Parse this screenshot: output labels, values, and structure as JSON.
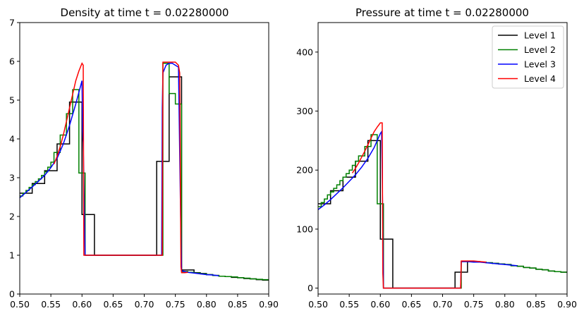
{
  "chart_data": [
    {
      "type": "line",
      "title": "Density at time t =     0.02280000",
      "xlabel": "",
      "ylabel": "",
      "xlim": [
        0.5,
        0.9
      ],
      "ylim": [
        0,
        7
      ],
      "xticks": [
        0.5,
        0.55,
        0.6,
        0.65,
        0.7,
        0.75,
        0.8,
        0.85,
        0.9
      ],
      "xtick_labels": [
        "0.50",
        "0.55",
        "0.60",
        "0.65",
        "0.70",
        "0.75",
        "0.80",
        "0.85",
        "0.90"
      ],
      "yticks": [
        0,
        1,
        2,
        3,
        4,
        5,
        6,
        7
      ],
      "ytick_labels": [
        "0",
        "1",
        "2",
        "3",
        "4",
        "5",
        "6",
        "7"
      ],
      "grid": false,
      "series": [
        {
          "name": "Level 1",
          "color": "#000000",
          "step": true,
          "x": [
            0.5,
            0.51,
            0.52,
            0.53,
            0.54,
            0.55,
            0.56,
            0.57,
            0.58,
            0.59,
            0.6,
            0.61,
            0.62,
            0.63,
            0.64,
            0.65,
            0.66,
            0.67,
            0.68,
            0.69,
            0.7,
            0.71,
            0.72,
            0.73,
            0.74,
            0.75,
            0.76,
            0.77,
            0.78,
            0.79,
            0.8,
            0.81,
            0.82,
            0.83,
            0.84,
            0.85,
            0.86,
            0.87,
            0.88,
            0.89,
            0.9
          ],
          "y": [
            2.6,
            2.6,
            2.85,
            2.85,
            3.18,
            3.18,
            3.87,
            3.87,
            4.95,
            4.95,
            2.05,
            2.05,
            1.0,
            1.0,
            1.0,
            1.0,
            1.0,
            1.0,
            1.0,
            1.0,
            1.0,
            1.0,
            3.42,
            3.42,
            5.6,
            5.6,
            0.62,
            0.62,
            0.55,
            0.53,
            0.5,
            0.48,
            0.46,
            0.45,
            0.43,
            0.42,
            0.4,
            0.39,
            0.37,
            0.36,
            0.35
          ]
        },
        {
          "name": "Level 2",
          "color": "#008000",
          "step": true,
          "x": [
            0.5,
            0.505,
            0.51,
            0.515,
            0.52,
            0.525,
            0.53,
            0.535,
            0.54,
            0.545,
            0.55,
            0.555,
            0.56,
            0.565,
            0.57,
            0.575,
            0.58,
            0.585,
            0.59,
            0.595,
            0.6,
            0.605,
            0.61,
            0.615,
            0.62,
            0.7,
            0.725,
            0.73,
            0.735,
            0.74,
            0.745,
            0.75,
            0.755,
            0.76,
            0.765,
            0.77,
            0.78,
            0.79,
            0.8,
            0.81,
            0.82,
            0.83,
            0.84,
            0.85,
            0.86,
            0.87,
            0.88,
            0.89,
            0.9
          ],
          "y": [
            2.53,
            2.6,
            2.67,
            2.75,
            2.82,
            2.9,
            2.97,
            3.06,
            3.15,
            3.27,
            3.4,
            3.65,
            3.65,
            4.1,
            4.1,
            4.65,
            4.65,
            5.27,
            5.27,
            3.12,
            3.12,
            1.0,
            1.0,
            1.0,
            1.0,
            1.0,
            1.0,
            5.95,
            5.95,
            5.17,
            5.17,
            4.9,
            4.9,
            0.58,
            0.58,
            0.56,
            0.54,
            0.52,
            0.5,
            0.48,
            0.46,
            0.45,
            0.44,
            0.42,
            0.41,
            0.39,
            0.38,
            0.37,
            0.36
          ]
        },
        {
          "name": "Level 3",
          "color": "#0000ff",
          "step": false,
          "x": [
            0.5,
            0.51,
            0.52,
            0.53,
            0.54,
            0.55,
            0.56,
            0.57,
            0.58,
            0.59,
            0.595,
            0.6,
            0.601,
            0.602,
            0.605,
            0.61,
            0.65,
            0.7,
            0.728,
            0.729,
            0.73,
            0.735,
            0.74,
            0.745,
            0.75,
            0.755,
            0.758,
            0.759,
            0.76,
            0.765,
            0.77,
            0.78,
            0.79,
            0.8,
            0.81,
            0.82
          ],
          "y": [
            2.48,
            2.62,
            2.76,
            2.91,
            3.06,
            3.26,
            3.5,
            3.87,
            4.35,
            4.9,
            5.2,
            5.5,
            4.2,
            3.9,
            1.0,
            1.0,
            1.0,
            1.0,
            1.0,
            4.8,
            5.7,
            5.9,
            5.95,
            5.95,
            5.9,
            5.85,
            2.5,
            1.5,
            0.6,
            0.58,
            0.56,
            0.54,
            0.52,
            0.5,
            0.49,
            0.47
          ]
        },
        {
          "name": "Level 4",
          "color": "#ff0000",
          "step": false,
          "x": [
            0.555,
            0.56,
            0.565,
            0.57,
            0.575,
            0.58,
            0.585,
            0.59,
            0.595,
            0.6,
            0.602,
            0.603,
            0.604,
            0.61,
            0.65,
            0.7,
            0.729,
            0.73,
            0.735,
            0.74,
            0.745,
            0.75,
            0.755,
            0.757,
            0.758,
            0.759,
            0.76,
            0.765,
            0.77
          ],
          "y": [
            3.35,
            3.55,
            3.8,
            4.1,
            4.45,
            4.8,
            5.15,
            5.5,
            5.75,
            5.95,
            5.9,
            1.0,
            1.0,
            1.0,
            1.0,
            1.0,
            1.0,
            5.98,
            5.98,
            5.98,
            5.98,
            5.98,
            5.9,
            5.7,
            3.0,
            0.7,
            0.55,
            0.55,
            0.56
          ]
        }
      ]
    },
    {
      "type": "line",
      "title": "Pressure at time t =     0.02280000",
      "xlabel": "",
      "ylabel": "",
      "xlim": [
        0.5,
        0.9
      ],
      "ylim": [
        -10,
        450
      ],
      "xticks": [
        0.5,
        0.55,
        0.6,
        0.65,
        0.7,
        0.75,
        0.8,
        0.85,
        0.9
      ],
      "xtick_labels": [
        "0.50",
        "0.55",
        "0.60",
        "0.65",
        "0.70",
        "0.75",
        "0.80",
        "0.85",
        "0.90"
      ],
      "yticks": [
        0,
        100,
        200,
        300,
        400
      ],
      "ytick_labels": [
        "0",
        "100",
        "200",
        "300",
        "400"
      ],
      "grid": false,
      "legend": {
        "position": "top-right",
        "entries": [
          "Level 1",
          "Level 2",
          "Level 3",
          "Level 4"
        ]
      },
      "series": [
        {
          "name": "Level 1",
          "color": "#000000",
          "step": true,
          "x": [
            0.5,
            0.51,
            0.52,
            0.53,
            0.54,
            0.55,
            0.56,
            0.57,
            0.58,
            0.59,
            0.6,
            0.61,
            0.62,
            0.63,
            0.64,
            0.65,
            0.66,
            0.67,
            0.68,
            0.69,
            0.7,
            0.71,
            0.72,
            0.73,
            0.74,
            0.75,
            0.76,
            0.77,
            0.78,
            0.79,
            0.8,
            0.81,
            0.82,
            0.83,
            0.84,
            0.85,
            0.86,
            0.87,
            0.88,
            0.89,
            0.9
          ],
          "y": [
            143,
            143,
            165,
            165,
            188,
            188,
            215,
            215,
            250,
            250,
            83,
            83,
            0,
            0,
            0,
            0,
            0,
            0,
            0,
            0,
            0,
            0,
            27,
            27,
            45,
            45,
            44,
            43,
            42,
            41,
            40,
            38,
            37,
            35,
            34,
            32,
            31,
            29,
            28,
            27,
            26
          ]
        },
        {
          "name": "Level 2",
          "color": "#008000",
          "step": true,
          "x": [
            0.5,
            0.505,
            0.51,
            0.515,
            0.52,
            0.525,
            0.53,
            0.535,
            0.54,
            0.545,
            0.55,
            0.555,
            0.56,
            0.565,
            0.57,
            0.575,
            0.58,
            0.585,
            0.59,
            0.595,
            0.6,
            0.605,
            0.61,
            0.7,
            0.725,
            0.73,
            0.74,
            0.75,
            0.76,
            0.77,
            0.78,
            0.79,
            0.8,
            0.81,
            0.82,
            0.83,
            0.84,
            0.85,
            0.86,
            0.87,
            0.88,
            0.89,
            0.9
          ],
          "y": [
            138,
            145,
            151,
            158,
            163,
            169,
            175,
            182,
            188,
            194,
            200,
            208,
            215,
            224,
            224,
            240,
            240,
            260,
            260,
            143,
            143,
            0,
            0,
            0,
            0,
            45,
            45,
            44,
            44,
            43,
            42,
            41,
            40,
            38,
            37,
            35,
            34,
            32,
            31,
            29,
            28,
            27,
            26
          ]
        },
        {
          "name": "Level 3",
          "color": "#0000ff",
          "step": false,
          "x": [
            0.5,
            0.51,
            0.52,
            0.53,
            0.54,
            0.55,
            0.56,
            0.57,
            0.58,
            0.59,
            0.6,
            0.602,
            0.603,
            0.605,
            0.65,
            0.7,
            0.729,
            0.73,
            0.74,
            0.75,
            0.76,
            0.77,
            0.78,
            0.79,
            0.8,
            0.81,
            0.82
          ],
          "y": [
            133,
            141,
            150,
            160,
            170,
            181,
            192,
            205,
            220,
            238,
            262,
            265,
            200,
            0,
            0,
            0,
            0,
            45,
            45,
            44,
            44,
            43,
            42,
            41,
            40,
            39,
            38
          ]
        },
        {
          "name": "Level 4",
          "color": "#ff0000",
          "step": false,
          "x": [
            0.555,
            0.56,
            0.565,
            0.57,
            0.575,
            0.58,
            0.585,
            0.59,
            0.595,
            0.6,
            0.603,
            0.604,
            0.605,
            0.61,
            0.65,
            0.7,
            0.729,
            0.73,
            0.74,
            0.75,
            0.76,
            0.77
          ],
          "y": [
            195,
            203,
            212,
            222,
            232,
            243,
            254,
            265,
            273,
            280,
            280,
            25,
            0,
            0,
            0,
            0,
            0,
            46,
            46,
            46,
            45,
            44
          ]
        }
      ]
    }
  ]
}
